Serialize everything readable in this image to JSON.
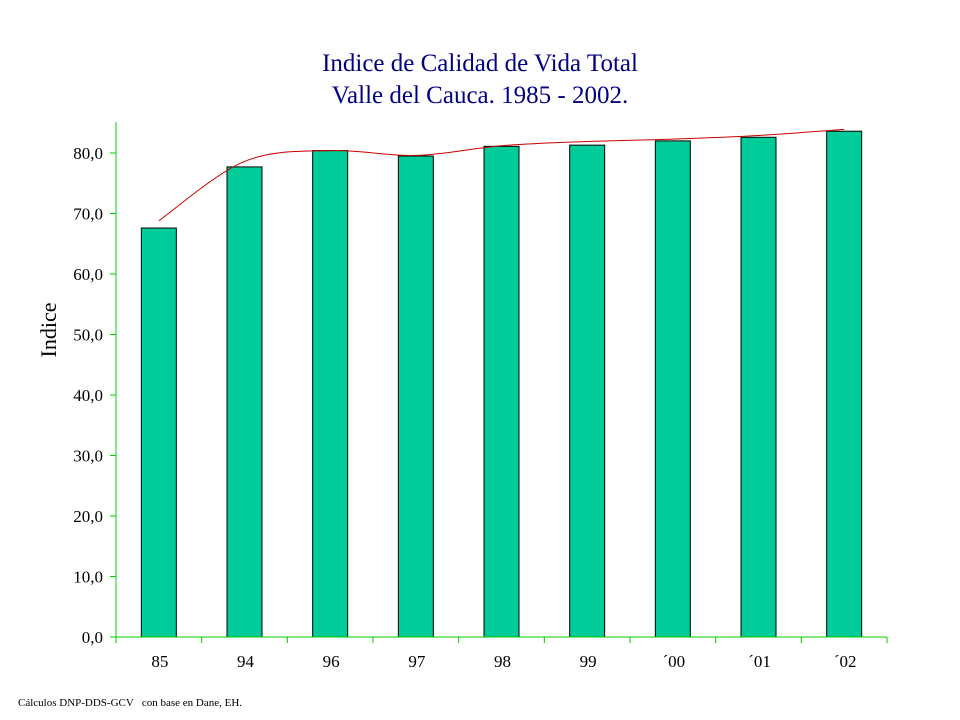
{
  "chart_data": {
    "type": "bar",
    "title": "Indice de Calidad de Vida Total",
    "subtitle": "Valle del Cauca. 1985 - 2002.",
    "xlabel": "",
    "ylabel": "Indice",
    "categories": [
      "85",
      "94",
      "96",
      "97",
      "98",
      "99",
      "´00",
      "´01",
      "´02"
    ],
    "values": [
      67.6,
      77.7,
      80.4,
      79.5,
      81.1,
      81.3,
      82.0,
      82.6,
      83.6
    ],
    "trendline": [
      68.8,
      78.6,
      80.4,
      79.6,
      81.2,
      81.9,
      82.3,
      82.9,
      83.9
    ],
    "yticks": [
      "0,0",
      "10,0",
      "20,0",
      "30,0",
      "40,0",
      "50,0",
      "60,0",
      "70,0",
      "80,0"
    ],
    "ylim": [
      0,
      85
    ],
    "grid": false,
    "legend": "none",
    "colors": {
      "bar": "#00CC99",
      "bar_border": "#000000",
      "trend": "#CC0000",
      "axis": "#00CC00",
      "title": "#000080"
    },
    "footnote": "Cálculos DNP-DDS-GCV   con base en Dane, EH."
  }
}
